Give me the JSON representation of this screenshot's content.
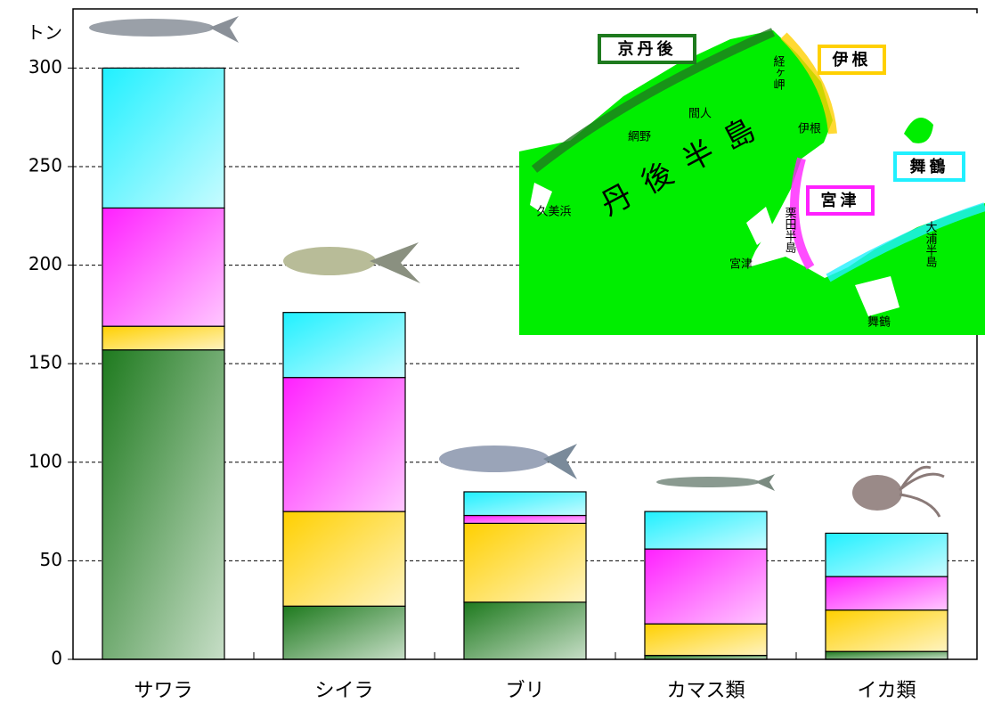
{
  "chart_data": {
    "type": "stacked_bar",
    "y_axis_label": "トン",
    "categories": [
      "サワラ",
      "シイラ",
      "ブリ",
      "カマス類",
      "イカ類"
    ],
    "series": [
      {
        "name": "京丹後",
        "color": "#1e7a1e",
        "values": [
          157,
          27,
          29,
          2,
          4
        ]
      },
      {
        "name": "伊根",
        "color": "#ffd000",
        "values": [
          12,
          48,
          40,
          16,
          21
        ]
      },
      {
        "name": "宮津",
        "color": "#ff20ff",
        "values": [
          60,
          68,
          4,
          38,
          17
        ]
      },
      {
        "name": "舞鶴",
        "color": "#20f0ff",
        "values": [
          71,
          33,
          12,
          19,
          22
        ]
      }
    ],
    "ylim": [
      0,
      330
    ],
    "yticks": [
      0,
      50,
      100,
      150,
      200,
      250,
      300
    ],
    "grid": true,
    "annotations": [
      "丹後半島",
      "久美浜",
      "網野",
      "間人",
      "経ヶ岬",
      "伊根",
      "栗田半島",
      "宮津",
      "舞鶴",
      "大浦半島"
    ]
  }
}
